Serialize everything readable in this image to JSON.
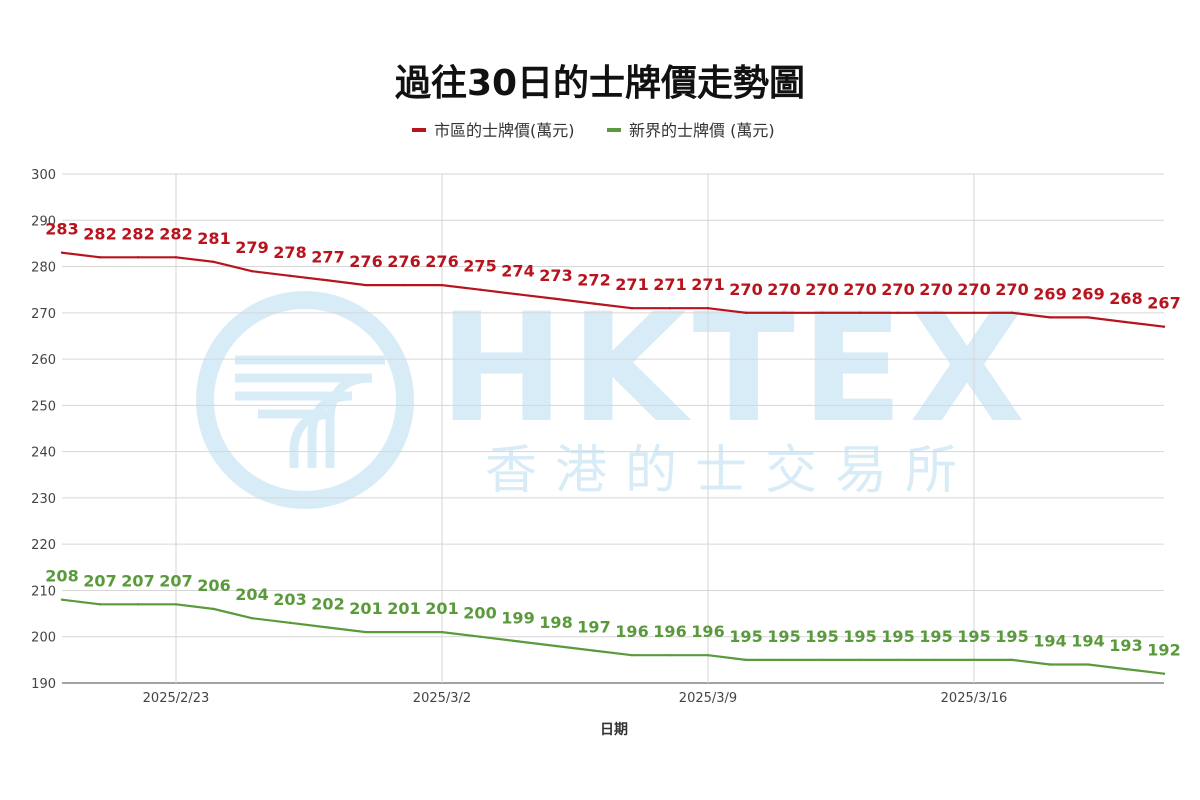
{
  "watermark": {
    "logo_text": "HKTEX",
    "logo_subtext": "香港的士交易所",
    "color": "#d8ecf8"
  },
  "chart_data": {
    "type": "line",
    "title": "過往30日的士牌價走勢圖",
    "xlabel": "日期",
    "ylabel": "",
    "ylim": [
      190,
      300
    ],
    "yticks": [
      190,
      200,
      210,
      220,
      230,
      240,
      250,
      260,
      270,
      280,
      290,
      300
    ],
    "x_tick_labels": [
      {
        "index": 3,
        "label": "2025/2/23"
      },
      {
        "index": 10,
        "label": "2025/3/2"
      },
      {
        "index": 17,
        "label": "2025/3/9"
      },
      {
        "index": 24,
        "label": "2025/3/16"
      }
    ],
    "point_count": 30,
    "grid": true,
    "legend_position": "top-center",
    "series": [
      {
        "name": "市區的士牌價(萬元)",
        "color": "#b7141e",
        "values": [
          283,
          282,
          282,
          282,
          281,
          279,
          278,
          277,
          276,
          276,
          276,
          275,
          274,
          273,
          272,
          271,
          271,
          271,
          270,
          270,
          270,
          270,
          270,
          270,
          270,
          270,
          269,
          269,
          268,
          267
        ]
      },
      {
        "name": "新界的士牌價 (萬元)",
        "color": "#5a9a3c",
        "values": [
          208,
          207,
          207,
          207,
          206,
          204,
          203,
          202,
          201,
          201,
          201,
          200,
          199,
          198,
          197,
          196,
          196,
          196,
          195,
          195,
          195,
          195,
          195,
          195,
          195,
          195,
          194,
          194,
          193,
          192
        ]
      }
    ]
  }
}
